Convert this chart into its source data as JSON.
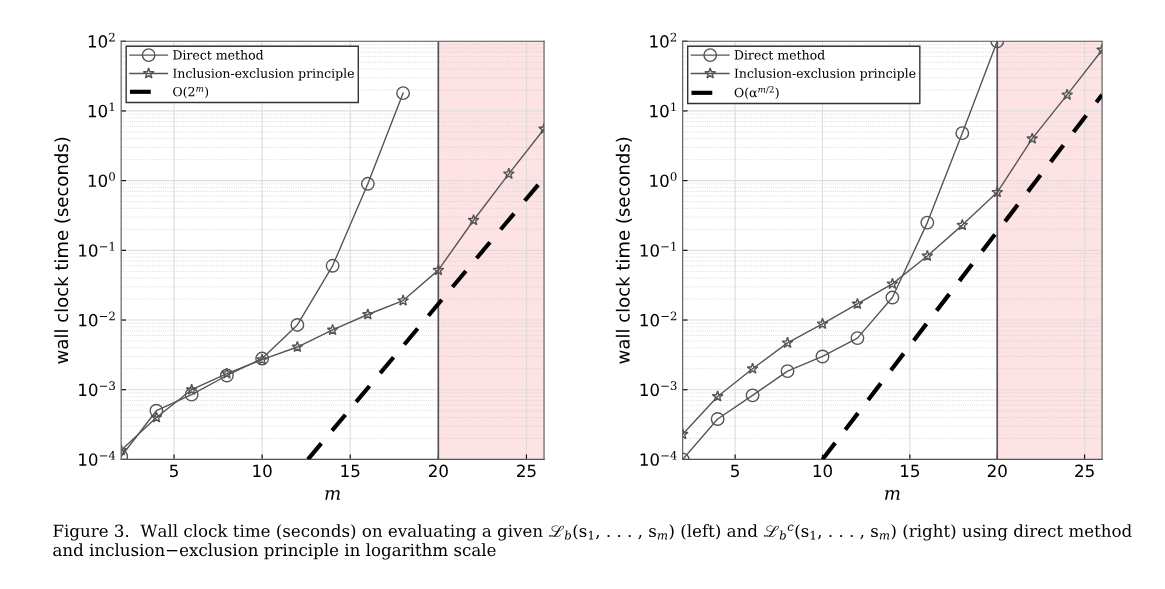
{
  "chart_data": [
    {
      "type": "line",
      "xlabel": "m",
      "ylabel": "wall clock time (seconds)",
      "log": "y",
      "grid": true,
      "legend": "top left",
      "x": [
        2,
        4,
        6,
        8,
        10,
        12,
        14,
        16,
        18,
        20,
        22,
        24,
        26
      ],
      "xlim": [
        2,
        26
      ],
      "xticks": [
        5,
        10,
        15,
        20,
        25
      ],
      "ylim": [
        0.0001,
        100
      ],
      "yticks": [
        {
          "value": 0.0001,
          "label": "10$^{−4}$"
        },
        {
          "value": 0.001,
          "label": "10$^{−3}$"
        },
        {
          "value": 0.01,
          "label": "10$^{−2}$"
        },
        {
          "value": 0.1,
          "label": "10$^{−1}$"
        },
        {
          "value": 1,
          "label": "10$^{0}$"
        },
        {
          "value": 10,
          "label": "10$^{1}$"
        },
        {
          "value": 100,
          "label": "10$^{2}$"
        }
      ],
      "series": [
        {
          "name": "Direct method",
          "color": "#555555",
          "marker": "circle",
          "values": [
            0.00011,
            0.0005,
            0.00085,
            0.0016,
            0.0028,
            0.0085,
            0.06,
            0.9,
            18,
            null,
            null,
            null,
            null
          ]
        },
        {
          "name": "Inclusion-exclusion principle",
          "color": "#555555",
          "marker": "star",
          "values": [
            0.000135,
            0.0004,
            0.001,
            0.0017,
            0.0027,
            0.0041,
            0.0072,
            0.012,
            0.019,
            0.052,
            0.27,
            1.25,
            5.5
          ]
        },
        {
          "name": "O(2$^{m}$)",
          "color": "#000000",
          "marker": "none",
          "line_style": "dashed",
          "x": [
            12.6,
            26
          ],
          "values": [
            0.0001,
            1.1
          ]
        }
      ],
      "bands": [
        {
          "axis": "x",
          "from": 20,
          "to": 26,
          "color": "#fde3e4"
        }
      ],
      "ref_lines": [
        {
          "axis": "x",
          "value": 20,
          "color": "#555555"
        }
      ],
      "annotations": [
        "Figure 3.  Wall clock time (seconds) on evaluating a given ℒ$_{b}$(s$_{1}$, . . . , s$_{m}$) (left) and ℒ$_{b}$$^{c}$(s$_{1}$, . . . , s$_{m}$) (right) using direct method and inclusion−exclusion principle in logarithm scale"
      ]
    },
    {
      "type": "line",
      "xlabel": "m",
      "ylabel": "wall clock time (seconds)",
      "log": "y",
      "grid": true,
      "legend": "top left",
      "x": [
        2,
        4,
        6,
        8,
        10,
        12,
        14,
        16,
        18,
        20,
        22,
        24,
        26
      ],
      "xlim": [
        2,
        26
      ],
      "xticks": [
        5,
        10,
        15,
        20,
        25
      ],
      "ylim": [
        0.0001,
        100
      ],
      "yticks": [
        {
          "value": 0.0001,
          "label": "10$^{−4}$"
        },
        {
          "value": 0.001,
          "label": "10$^{−3}$"
        },
        {
          "value": 0.01,
          "label": "10$^{−2}$"
        },
        {
          "value": 0.1,
          "label": "10$^{−1}$"
        },
        {
          "value": 1,
          "label": "10$^{0}$"
        },
        {
          "value": 10,
          "label": "10$^{1}$"
        },
        {
          "value": 100,
          "label": "10$^{2}$"
        }
      ],
      "series": [
        {
          "name": "Direct method",
          "color": "#555555",
          "marker": "circle",
          "values": [
            0.0001,
            0.00038,
            0.00083,
            0.00185,
            0.003,
            0.0055,
            0.021,
            0.25,
            4.8,
            100,
            null,
            null,
            null
          ]
        },
        {
          "name": "Inclusion-exclusion principle",
          "color": "#555555",
          "marker": "star",
          "values": [
            0.00023,
            0.0008,
            0.002,
            0.0047,
            0.0088,
            0.017,
            0.033,
            0.083,
            0.23,
            0.68,
            4,
            17,
            75
          ]
        },
        {
          "name": "O(α$^{m/2}$)",
          "color": "#000000",
          "marker": "none",
          "line_style": "dashed",
          "x": [
            10,
            26
          ],
          "values": [
            0.0001,
            17
          ]
        }
      ],
      "bands": [
        {
          "axis": "x",
          "from": 20,
          "to": 26,
          "color": "#fde3e4"
        }
      ],
      "ref_lines": [
        {
          "axis": "x",
          "value": 20,
          "color": "#555555"
        }
      ]
    }
  ]
}
